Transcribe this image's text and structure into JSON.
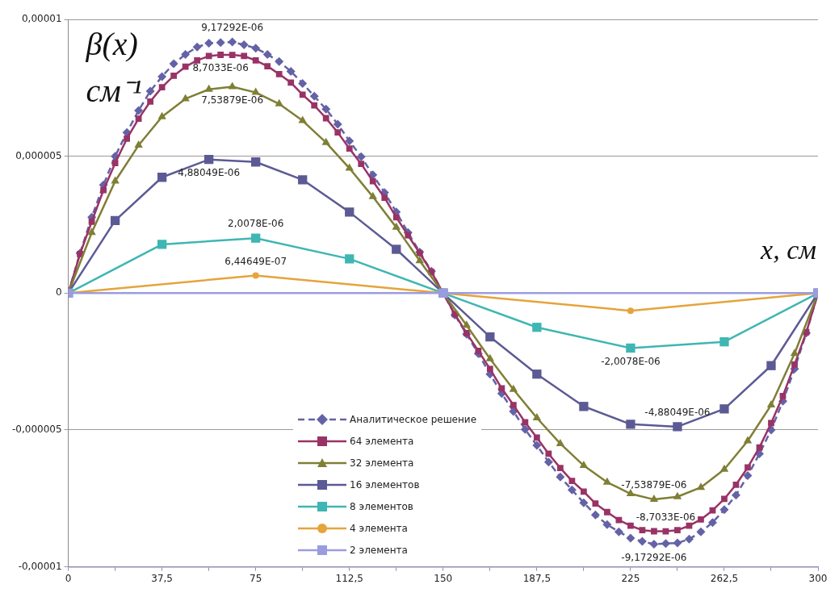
{
  "chart_data": {
    "type": "line",
    "xlabel": "x, см",
    "ylabel": "β(x)\nсм⁻¹",
    "xlim": [
      0,
      300
    ],
    "ylim": [
      -1e-05,
      1e-05
    ],
    "xticks": [
      0,
      {
        "value": 18.75,
        "label": null
      },
      {
        "value": 37.5,
        "label": "37,5"
      },
      {
        "value": 56.25,
        "label": null
      },
      75,
      {
        "value": 93.75,
        "label": null
      },
      {
        "value": 112.5,
        "label": "112,5"
      },
      {
        "value": 131.25,
        "label": null
      },
      150,
      {
        "value": 168.75,
        "label": null
      },
      {
        "value": 187.5,
        "label": "187,5"
      },
      {
        "value": 206.25,
        "label": null
      },
      225,
      {
        "value": 243.75,
        "label": null
      },
      {
        "value": 262.5,
        "label": "262,5"
      },
      {
        "value": 281.25,
        "label": null
      },
      300
    ],
    "yticks": [
      {
        "value": -1e-05,
        "label": "-0,00001"
      },
      {
        "value": -5e-06,
        "label": "-0,000005"
      },
      0,
      {
        "value": 5e-06,
        "label": "0,000005"
      },
      {
        "value": 1e-05,
        "label": "0,00001"
      }
    ],
    "grid": "y",
    "legend": "bottom",
    "series": [
      {
        "name": "Аналитическое решение",
        "color": "#6462a6",
        "marker": "diamond",
        "line_style": "dashed",
        "x": [
          0,
          4.6875,
          9.375,
          14.0625,
          18.75,
          23.4375,
          28.125,
          32.8125,
          37.5,
          42.1875,
          46.875,
          51.5625,
          56.25,
          60.9375,
          65.625,
          70.3125,
          75,
          79.6875,
          84.375,
          89.0625,
          93.75,
          98.4375,
          103.125,
          107.8125,
          112.5,
          117.1875,
          121.875,
          126.5625,
          131.25,
          135.9375,
          140.625,
          145.3125,
          150,
          154.6875,
          159.375,
          164.0625,
          168.75,
          173.4375,
          178.125,
          182.8125,
          187.5,
          192.1875,
          196.875,
          201.5625,
          206.25,
          210.9375,
          215.625,
          220.3125,
          225,
          229.6875,
          234.375,
          239.0625,
          243.75,
          248.4375,
          253.125,
          257.8125,
          262.5,
          267.1875,
          271.875,
          276.5625,
          281.25,
          285.9375,
          290.625,
          295.3125,
          300
        ],
        "values": [
          0,
          1.46e-06,
          2.77e-06,
          3.95e-06,
          5e-06,
          5.87e-06,
          6.67e-06,
          7.38e-06,
          7.91e-06,
          8.38e-06,
          8.72e-06,
          8.99e-06,
          9.13e-06,
          9.15e-06,
          9.17292e-06,
          9.07e-06,
          8.95e-06,
          8.72e-06,
          8.46e-06,
          8.1e-06,
          7.66e-06,
          7.19e-06,
          6.72e-06,
          6.17e-06,
          5.56e-06,
          4.98e-06,
          4.32e-06,
          3.67e-06,
          2.96e-06,
          2.21e-06,
          1.5e-06,
          8e-07,
          0,
          -8e-07,
          -1.5e-06,
          -2.21e-06,
          -2.96e-06,
          -3.67e-06,
          -4.32e-06,
          -4.98e-06,
          -5.56e-06,
          -6.17e-06,
          -6.72e-06,
          -7.19e-06,
          -7.66e-06,
          -8.1e-06,
          -8.46e-06,
          -8.72e-06,
          -8.95e-06,
          -9.07e-06,
          -9.17292e-06,
          -9.15e-06,
          -9.13e-06,
          -8.99e-06,
          -8.72e-06,
          -8.38e-06,
          -7.91e-06,
          -7.38e-06,
          -6.67e-06,
          -5.87e-06,
          -5e-06,
          -3.95e-06,
          -2.77e-06,
          -1.46e-06,
          0
        ],
        "value_labels": [
          null,
          null,
          null,
          null,
          null,
          null,
          null,
          null,
          null,
          null,
          null,
          null,
          null,
          null,
          "9,17292E-06",
          null,
          null,
          null,
          null,
          null,
          null,
          null,
          null,
          null,
          null,
          null,
          null,
          null,
          null,
          null,
          null,
          null,
          null,
          null,
          null,
          null,
          null,
          null,
          null,
          null,
          null,
          null,
          null,
          null,
          null,
          null,
          null,
          null,
          null,
          null,
          "-9,17292E-06",
          null,
          null,
          null,
          null,
          null,
          null,
          null,
          null,
          null,
          null,
          null,
          null,
          null,
          null
        ]
      },
      {
        "name": "64 элемента",
        "color": "#993366",
        "marker": "square",
        "line_style": "solid",
        "x": [
          0,
          4.6875,
          9.375,
          14.0625,
          18.75,
          23.4375,
          28.125,
          32.8125,
          37.5,
          42.1875,
          46.875,
          51.5625,
          56.25,
          60.9375,
          65.625,
          70.3125,
          75,
          79.6875,
          84.375,
          89.0625,
          93.75,
          98.4375,
          103.125,
          107.8125,
          112.5,
          117.1875,
          121.875,
          126.5625,
          131.25,
          135.9375,
          140.625,
          145.3125,
          150,
          154.6875,
          159.375,
          164.0625,
          168.75,
          173.4375,
          178.125,
          182.8125,
          187.5,
          192.1875,
          196.875,
          201.5625,
          206.25,
          210.9375,
          215.625,
          220.3125,
          225,
          229.6875,
          234.375,
          239.0625,
          243.75,
          248.4375,
          253.125,
          257.8125,
          262.5,
          267.1875,
          271.875,
          276.5625,
          281.25,
          285.9375,
          290.625,
          295.3125,
          300
        ],
        "values": [
          0,
          1.43e-06,
          2.61e-06,
          3.76e-06,
          4.75e-06,
          5.64e-06,
          6.37e-06,
          7e-06,
          7.52e-06,
          7.94e-06,
          8.27e-06,
          8.5e-06,
          8.66e-06,
          8.7033e-06,
          8.7e-06,
          8.66e-06,
          8.5e-06,
          8.29e-06,
          8e-06,
          7.69e-06,
          7.25e-06,
          6.86e-06,
          6.39e-06,
          5.87e-06,
          5.28e-06,
          4.72e-06,
          4.09e-06,
          3.48e-06,
          2.77e-06,
          2.11e-06,
          1.46e-06,
          7.7e-07,
          0,
          -7.7e-07,
          -1.46e-06,
          -2.11e-06,
          -2.77e-06,
          -3.48e-06,
          -4.09e-06,
          -4.72e-06,
          -5.28e-06,
          -5.87e-06,
          -6.39e-06,
          -6.86e-06,
          -7.25e-06,
          -7.69e-06,
          -8e-06,
          -8.29e-06,
          -8.5e-06,
          -8.66e-06,
          -8.7e-06,
          -8.7033e-06,
          -8.66e-06,
          -8.5e-06,
          -8.27e-06,
          -7.94e-06,
          -7.52e-06,
          -7e-06,
          -6.37e-06,
          -5.64e-06,
          -4.75e-06,
          -3.76e-06,
          -2.61e-06,
          -1.43e-06,
          0
        ],
        "value_labels": [
          null,
          null,
          null,
          null,
          null,
          null,
          null,
          null,
          null,
          null,
          null,
          null,
          null,
          "8,7033E-06",
          null,
          null,
          null,
          null,
          null,
          null,
          null,
          null,
          null,
          null,
          null,
          null,
          null,
          null,
          null,
          null,
          null,
          null,
          null,
          null,
          null,
          null,
          null,
          null,
          null,
          null,
          null,
          null,
          null,
          null,
          null,
          null,
          null,
          null,
          null,
          null,
          null,
          "-8,7033E-06",
          null,
          null,
          null,
          null,
          null,
          null,
          null,
          null,
          null,
          null,
          null,
          null,
          null
        ]
      },
      {
        "name": "32 элемента",
        "color": "#7f7f35",
        "marker": "triangle",
        "line_style": "solid",
        "x": [
          0,
          9.375,
          18.75,
          28.125,
          37.5,
          46.875,
          56.25,
          65.625,
          75,
          84.375,
          93.75,
          103.125,
          112.5,
          121.875,
          131.25,
          140.625,
          150,
          159.375,
          168.75,
          178.125,
          187.5,
          196.875,
          206.25,
          215.625,
          225,
          234.375,
          243.75,
          253.125,
          262.5,
          271.875,
          281.25,
          290.625,
          300
        ],
        "values": [
          0,
          2.21e-06,
          4.09e-06,
          5.4e-06,
          6.44e-06,
          7.1e-06,
          7.44e-06,
          7.53879e-06,
          7.33e-06,
          6.91e-06,
          6.3e-06,
          5.5e-06,
          4.56e-06,
          3.52e-06,
          2.4e-06,
          1.18e-06,
          0,
          -1.18e-06,
          -2.4e-06,
          -3.52e-06,
          -4.56e-06,
          -5.5e-06,
          -6.3e-06,
          -6.91e-06,
          -7.33e-06,
          -7.53879e-06,
          -7.44e-06,
          -7.1e-06,
          -6.44e-06,
          -5.4e-06,
          -4.09e-06,
          -2.21e-06,
          0
        ],
        "value_labels": [
          null,
          null,
          null,
          null,
          null,
          null,
          null,
          "7,53879E-06",
          null,
          null,
          null,
          null,
          null,
          null,
          null,
          null,
          null,
          null,
          null,
          null,
          null,
          null,
          null,
          null,
          null,
          "-7,53879E-06",
          null,
          null,
          null,
          null,
          null,
          null,
          null
        ]
      },
      {
        "name": "16 элементов",
        "color": "#5c5a94",
        "marker": "square",
        "line_style": "solid",
        "x": [
          0,
          18.75,
          37.5,
          56.25,
          75,
          93.75,
          112.5,
          131.25,
          150,
          168.75,
          187.5,
          206.25,
          225,
          243.75,
          262.5,
          281.25,
          300
        ],
        "values": [
          0,
          2.65e-06,
          4.23e-06,
          4.88049e-06,
          4.79e-06,
          4.14e-06,
          2.96e-06,
          1.6e-06,
          0,
          -1.6e-06,
          -2.96e-06,
          -4.14e-06,
          -4.79e-06,
          -4.88049e-06,
          -4.23e-06,
          -2.65e-06,
          0
        ],
        "value_labels": [
          null,
          null,
          null,
          "4,88049E-06",
          null,
          null,
          null,
          null,
          null,
          null,
          null,
          null,
          null,
          "-4,88049E-06",
          null,
          null,
          null
        ]
      },
      {
        "name": "8 элементов",
        "color": "#3fb6b3",
        "marker": "square",
        "line_style": "solid",
        "x": [
          0,
          37.5,
          75,
          112.5,
          150,
          187.5,
          225,
          262.5,
          300
        ],
        "values": [
          0,
          1.78e-06,
          2.0078e-06,
          1.25e-06,
          0,
          -1.25e-06,
          -2.0078e-06,
          -1.78e-06,
          0
        ],
        "value_labels": [
          null,
          null,
          "2,0078E-06",
          null,
          null,
          null,
          "-2,0078E-06",
          null,
          null
        ]
      },
      {
        "name": "4 элемента",
        "color": "#e5a43c",
        "marker": "circle",
        "line_style": "solid",
        "x": [
          0,
          75,
          150,
          225,
          300
        ],
        "values": [
          0,
          6.44649e-07,
          0,
          -6.44649e-07,
          0
        ],
        "value_labels": [
          null,
          "6,44649E-07",
          null,
          null,
          null
        ]
      },
      {
        "name": "2 элемента",
        "color": "#9b9be0",
        "marker": "square",
        "line_style": "solid",
        "x": [
          0,
          150,
          300
        ],
        "values": [
          0,
          0,
          0
        ],
        "value_labels": [
          null,
          null,
          null
        ]
      }
    ]
  }
}
